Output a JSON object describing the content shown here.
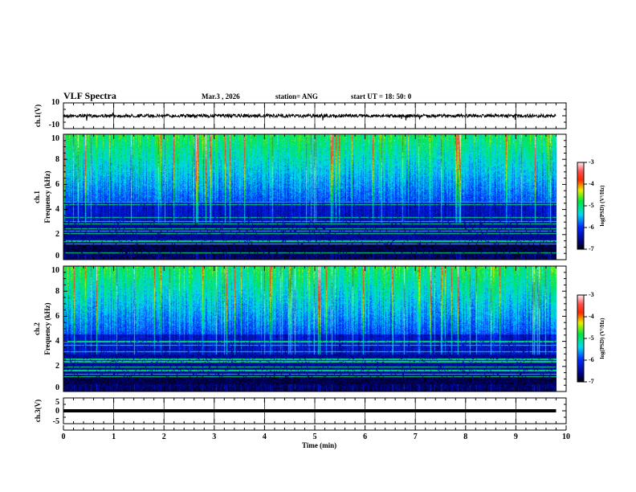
{
  "header": {
    "title": "VLF Spectra",
    "date": "Mar.3  , 2026",
    "station": "station= ANG",
    "start": "start  UT =   18: 50: 0"
  },
  "panels": {
    "ch1": {
      "label": "ch.1(V)",
      "yticks": [
        "10",
        "-10"
      ]
    },
    "spec1": {
      "label1": "ch.1",
      "label2": "Frequency  (kHz)",
      "yticks": [
        "10",
        "8",
        "6",
        "4",
        "2",
        "0"
      ]
    },
    "spec2": {
      "label1": "ch.2",
      "label2": "Frequency  (kHz)",
      "yticks": [
        "10",
        "8",
        "6",
        "4",
        "2",
        "0"
      ]
    },
    "ch3": {
      "label": "ch.3(V)",
      "yticks": [
        "5",
        "0",
        "-5"
      ]
    }
  },
  "colorbar": {
    "ticks": [
      "-3",
      "-4",
      "-5",
      "-6",
      "-7"
    ],
    "label": "log(PSD) (V²/Hz)"
  },
  "chart_data": {
    "type": "heatmap",
    "title": "VLF Spectra",
    "xlabel": "Time  (min)",
    "xticks": [
      "0",
      "1",
      "2",
      "3",
      "4",
      "5",
      "6",
      "7",
      "8",
      "9",
      "10"
    ],
    "xlim": [
      0,
      10
    ],
    "data_end_min": 9.8,
    "series": [
      {
        "name": "ch.1(V)",
        "type": "line",
        "ylim": [
          -10,
          10
        ],
        "level": 0
      },
      {
        "name": "ch.1 spectrum",
        "type": "heatmap",
        "ylabel": "Frequency (kHz)",
        "ylim": [
          0,
          10
        ],
        "clim": [
          -7,
          -3
        ]
      },
      {
        "name": "ch.2 spectrum",
        "type": "heatmap",
        "ylabel": "Frequency (kHz)",
        "ylim": [
          0,
          10
        ],
        "clim": [
          -7,
          -3
        ]
      },
      {
        "name": "ch.3(V)",
        "type": "line",
        "ylim": [
          -5,
          5
        ],
        "level": -1
      }
    ]
  }
}
